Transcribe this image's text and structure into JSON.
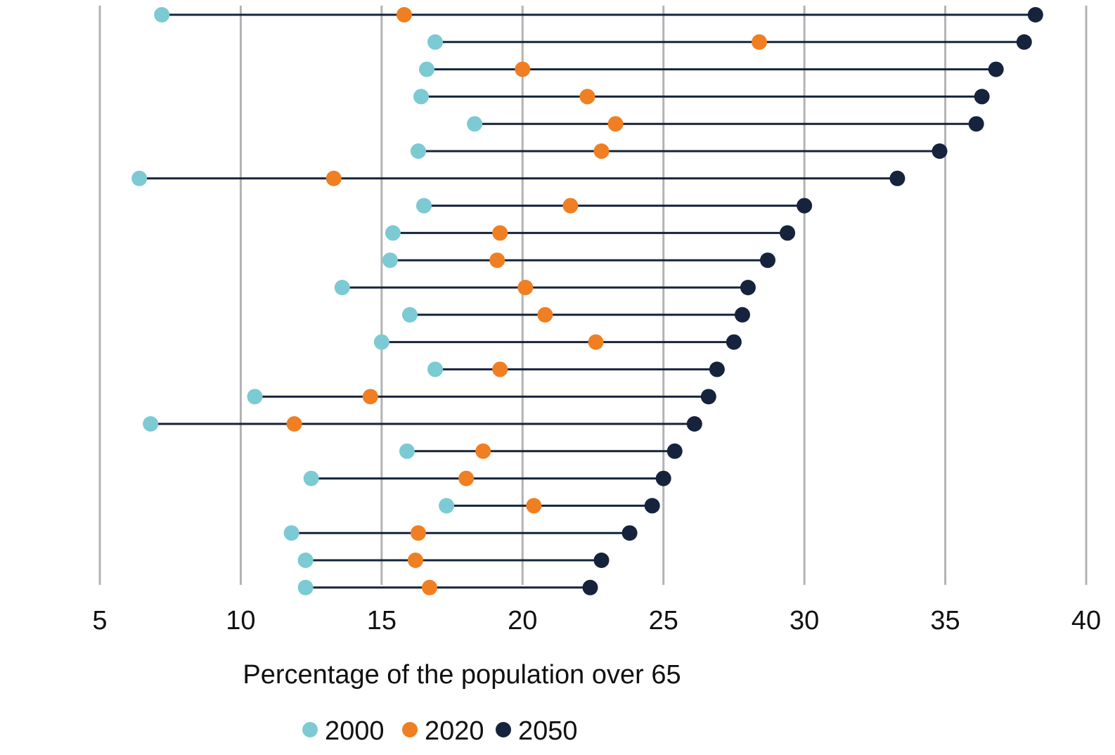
{
  "chart_data": {
    "type": "dumbbell",
    "title": "",
    "xlabel": "Percentage of the population over 65",
    "ylabel": "",
    "xlim": [
      5,
      40
    ],
    "xticks": [
      5,
      10,
      15,
      20,
      25,
      30,
      35,
      40
    ],
    "grid": "vertical",
    "legend_position": "bottom",
    "series": [
      {
        "name": "2000",
        "color": "#7ccad3",
        "values": [
          7.2,
          16.9,
          16.6,
          16.4,
          18.3,
          16.3,
          6.4,
          16.5,
          15.4,
          15.3,
          13.6,
          16.0,
          15.0,
          16.9,
          10.5,
          6.8,
          15.9,
          12.5,
          17.3,
          11.8,
          12.3,
          12.3
        ]
      },
      {
        "name": "2020",
        "color": "#ef7f22",
        "values": [
          15.8,
          28.4,
          20.0,
          22.3,
          23.3,
          22.8,
          13.3,
          21.7,
          19.2,
          19.1,
          20.1,
          20.8,
          22.6,
          19.2,
          14.6,
          11.9,
          18.6,
          18.0,
          20.4,
          16.3,
          16.2,
          16.7
        ]
      },
      {
        "name": "2050",
        "color": "#15233d",
        "values": [
          38.2,
          37.8,
          36.8,
          36.3,
          36.1,
          34.8,
          33.3,
          30.0,
          29.4,
          28.7,
          28.0,
          27.8,
          27.5,
          26.9,
          26.6,
          26.1,
          25.4,
          25.0,
          24.6,
          23.8,
          22.8,
          22.4
        ]
      }
    ],
    "line_color": "#15233d",
    "grid_color": "#b3b3b3"
  }
}
